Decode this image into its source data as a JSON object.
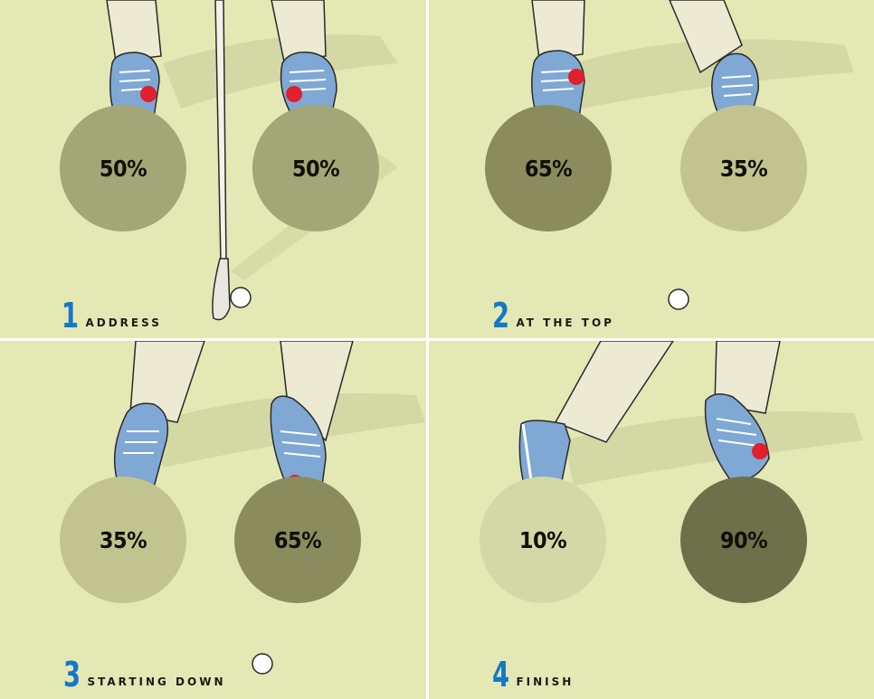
{
  "panels": [
    {
      "step": "1",
      "label": "ADDRESS",
      "left_pct": "50%",
      "right_pct": "50%"
    },
    {
      "step": "2",
      "label": "AT THE TOP",
      "left_pct": "65%",
      "right_pct": "35%"
    },
    {
      "step": "3",
      "label": "STARTING DOWN",
      "left_pct": "35%",
      "right_pct": "65%"
    },
    {
      "step": "4",
      "label": "FINISH",
      "left_pct": "10%",
      "right_pct": "90%"
    }
  ],
  "colors": {
    "background": "#e4e8b4",
    "divider": "#ffffff",
    "step_number": "#1478c8",
    "pressure_dot": "#e0202c",
    "shoe": "#7fa8d4",
    "pants": "#ecead2"
  }
}
